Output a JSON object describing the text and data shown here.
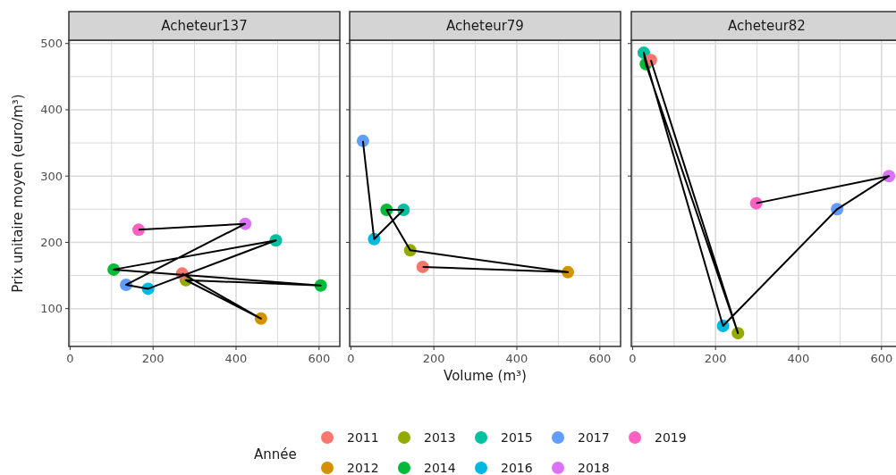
{
  "chart_data": [
    {
      "type": "scatter",
      "title": "Acheteur137",
      "ylabel": "Prix unitaire moyen (euro/m³)",
      "legend": "bottom",
      "legend_title": "Année",
      "grid": true,
      "marker": "circle",
      "xlim": [
        -3,
        650
      ],
      "ylim": [
        43,
        505
      ],
      "xticks": [
        0,
        {
          "value": 100,
          "label": null
        },
        200,
        {
          "value": 300,
          "label": null
        },
        400,
        {
          "value": 500,
          "label": null
        },
        600
      ],
      "yticks": [
        {
          "value": 50,
          "label": null
        },
        100,
        {
          "value": 150,
          "label": null
        },
        200,
        {
          "value": 250,
          "label": null
        },
        300,
        {
          "value": 350,
          "label": null
        },
        400,
        {
          "value": 450,
          "label": null
        },
        500
      ],
      "series": [
        {
          "type": "line",
          "color": "#000000",
          "marker": "none",
          "x": [
            270,
            460,
            279,
            604,
            105,
            496,
            188,
            135,
            422,
            165
          ],
          "values": [
            153,
            85,
            143,
            135,
            159,
            203,
            130,
            136,
            228,
            219
          ]
        },
        {
          "name": "2011",
          "color": "#F8766D",
          "x": [
            270
          ],
          "values": [
            153
          ]
        },
        {
          "name": "2012",
          "color": "#D39200",
          "x": [
            460
          ],
          "values": [
            85
          ]
        },
        {
          "name": "2013",
          "color": "#93AA00",
          "x": [
            279
          ],
          "values": [
            143
          ]
        },
        {
          "name": "2014",
          "color": "#00BA38",
          "x": [
            604,
            105
          ],
          "values": [
            135,
            159
          ]
        },
        {
          "name": "2015",
          "color": "#00C19F",
          "x": [
            496
          ],
          "values": [
            203
          ]
        },
        {
          "name": "2016",
          "color": "#00B9E3",
          "x": [
            188
          ],
          "values": [
            130
          ]
        },
        {
          "name": "2017",
          "color": "#619CFF",
          "x": [
            135
          ],
          "values": [
            136
          ]
        },
        {
          "name": "2018",
          "color": "#DB72FB",
          "x": [
            422
          ],
          "values": [
            228
          ]
        },
        {
          "name": "2019",
          "color": "#FF61C3",
          "x": [
            165
          ],
          "values": [
            219
          ]
        }
      ]
    },
    {
      "type": "scatter",
      "title": "Acheteur79",
      "xlabel": "Volume (m³)",
      "tick_labels": "x",
      "grid": true,
      "marker": "circle",
      "xlim": [
        -3,
        650
      ],
      "ylim": [
        43,
        505
      ],
      "xticks": [
        0,
        {
          "value": 100,
          "label": null
        },
        200,
        {
          "value": 300,
          "label": null
        },
        400,
        {
          "value": 500,
          "label": null
        },
        600
      ],
      "yticks": [
        {
          "value": 50,
          "label": null
        },
        100,
        {
          "value": 150,
          "label": null
        },
        200,
        {
          "value": 250,
          "label": null
        },
        300,
        {
          "value": 350,
          "label": null
        },
        400,
        {
          "value": 450,
          "label": null
        },
        500
      ],
      "series": [
        {
          "type": "line",
          "color": "#000000",
          "marker": "none",
          "x": [
            173,
            523,
            143,
            86,
            127,
            56,
            29
          ],
          "values": [
            163,
            155,
            188,
            249,
            249,
            205,
            353
          ]
        },
        {
          "name": "2011",
          "color": "#F8766D",
          "x": [
            173
          ],
          "values": [
            163
          ]
        },
        {
          "name": "2012",
          "color": "#D39200",
          "x": [
            523
          ],
          "values": [
            155
          ]
        },
        {
          "name": "2013",
          "color": "#93AA00",
          "x": [
            143
          ],
          "values": [
            188
          ]
        },
        {
          "name": "2014",
          "color": "#00BA38",
          "x": [
            86
          ],
          "values": [
            249
          ]
        },
        {
          "name": "2015",
          "color": "#00C19F",
          "x": [
            127
          ],
          "values": [
            249
          ]
        },
        {
          "name": "2016",
          "color": "#00B9E3",
          "x": [
            56
          ],
          "values": [
            205
          ]
        },
        {
          "name": "2017",
          "color": "#619CFF",
          "x": [
            29
          ],
          "values": [
            353
          ]
        }
      ]
    },
    {
      "type": "scatter",
      "title": "Acheteur82",
      "tick_labels": "x",
      "grid": true,
      "marker": "circle",
      "xlim": [
        -3,
        650
      ],
      "ylim": [
        43,
        505
      ],
      "xticks": [
        0,
        {
          "value": 100,
          "label": null
        },
        200,
        {
          "value": 300,
          "label": null
        },
        400,
        {
          "value": 500,
          "label": null
        },
        600
      ],
      "yticks": [
        {
          "value": 50,
          "label": null
        },
        100,
        {
          "value": 150,
          "label": null
        },
        200,
        {
          "value": 250,
          "label": null
        },
        300,
        {
          "value": 350,
          "label": null
        },
        400,
        {
          "value": 450,
          "label": null
        },
        500
      ],
      "series": [
        {
          "type": "line",
          "color": "#000000",
          "marker": "none",
          "x": [
            44,
            254,
            32,
            27,
            218,
            493,
            618,
            298
          ],
          "values": [
            475,
            63,
            469,
            486,
            74,
            250,
            300,
            259
          ]
        },
        {
          "name": "2011",
          "color": "#F8766D",
          "x": [
            44
          ],
          "values": [
            475
          ]
        },
        {
          "name": "2013",
          "color": "#93AA00",
          "x": [
            254
          ],
          "values": [
            63
          ]
        },
        {
          "name": "2014",
          "color": "#00BA38",
          "x": [
            32
          ],
          "values": [
            469
          ]
        },
        {
          "name": "2015",
          "color": "#00C19F",
          "x": [
            27
          ],
          "values": [
            486
          ]
        },
        {
          "name": "2016",
          "color": "#00B9E3",
          "x": [
            218
          ],
          "values": [
            74
          ]
        },
        {
          "name": "2017",
          "color": "#619CFF",
          "x": [
            493
          ],
          "values": [
            250
          ]
        },
        {
          "name": "2018",
          "color": "#DB72FB",
          "x": [
            618
          ],
          "values": [
            300
          ]
        },
        {
          "name": "2019",
          "color": "#FF61C3",
          "x": [
            298
          ],
          "values": [
            259
          ]
        }
      ]
    }
  ]
}
